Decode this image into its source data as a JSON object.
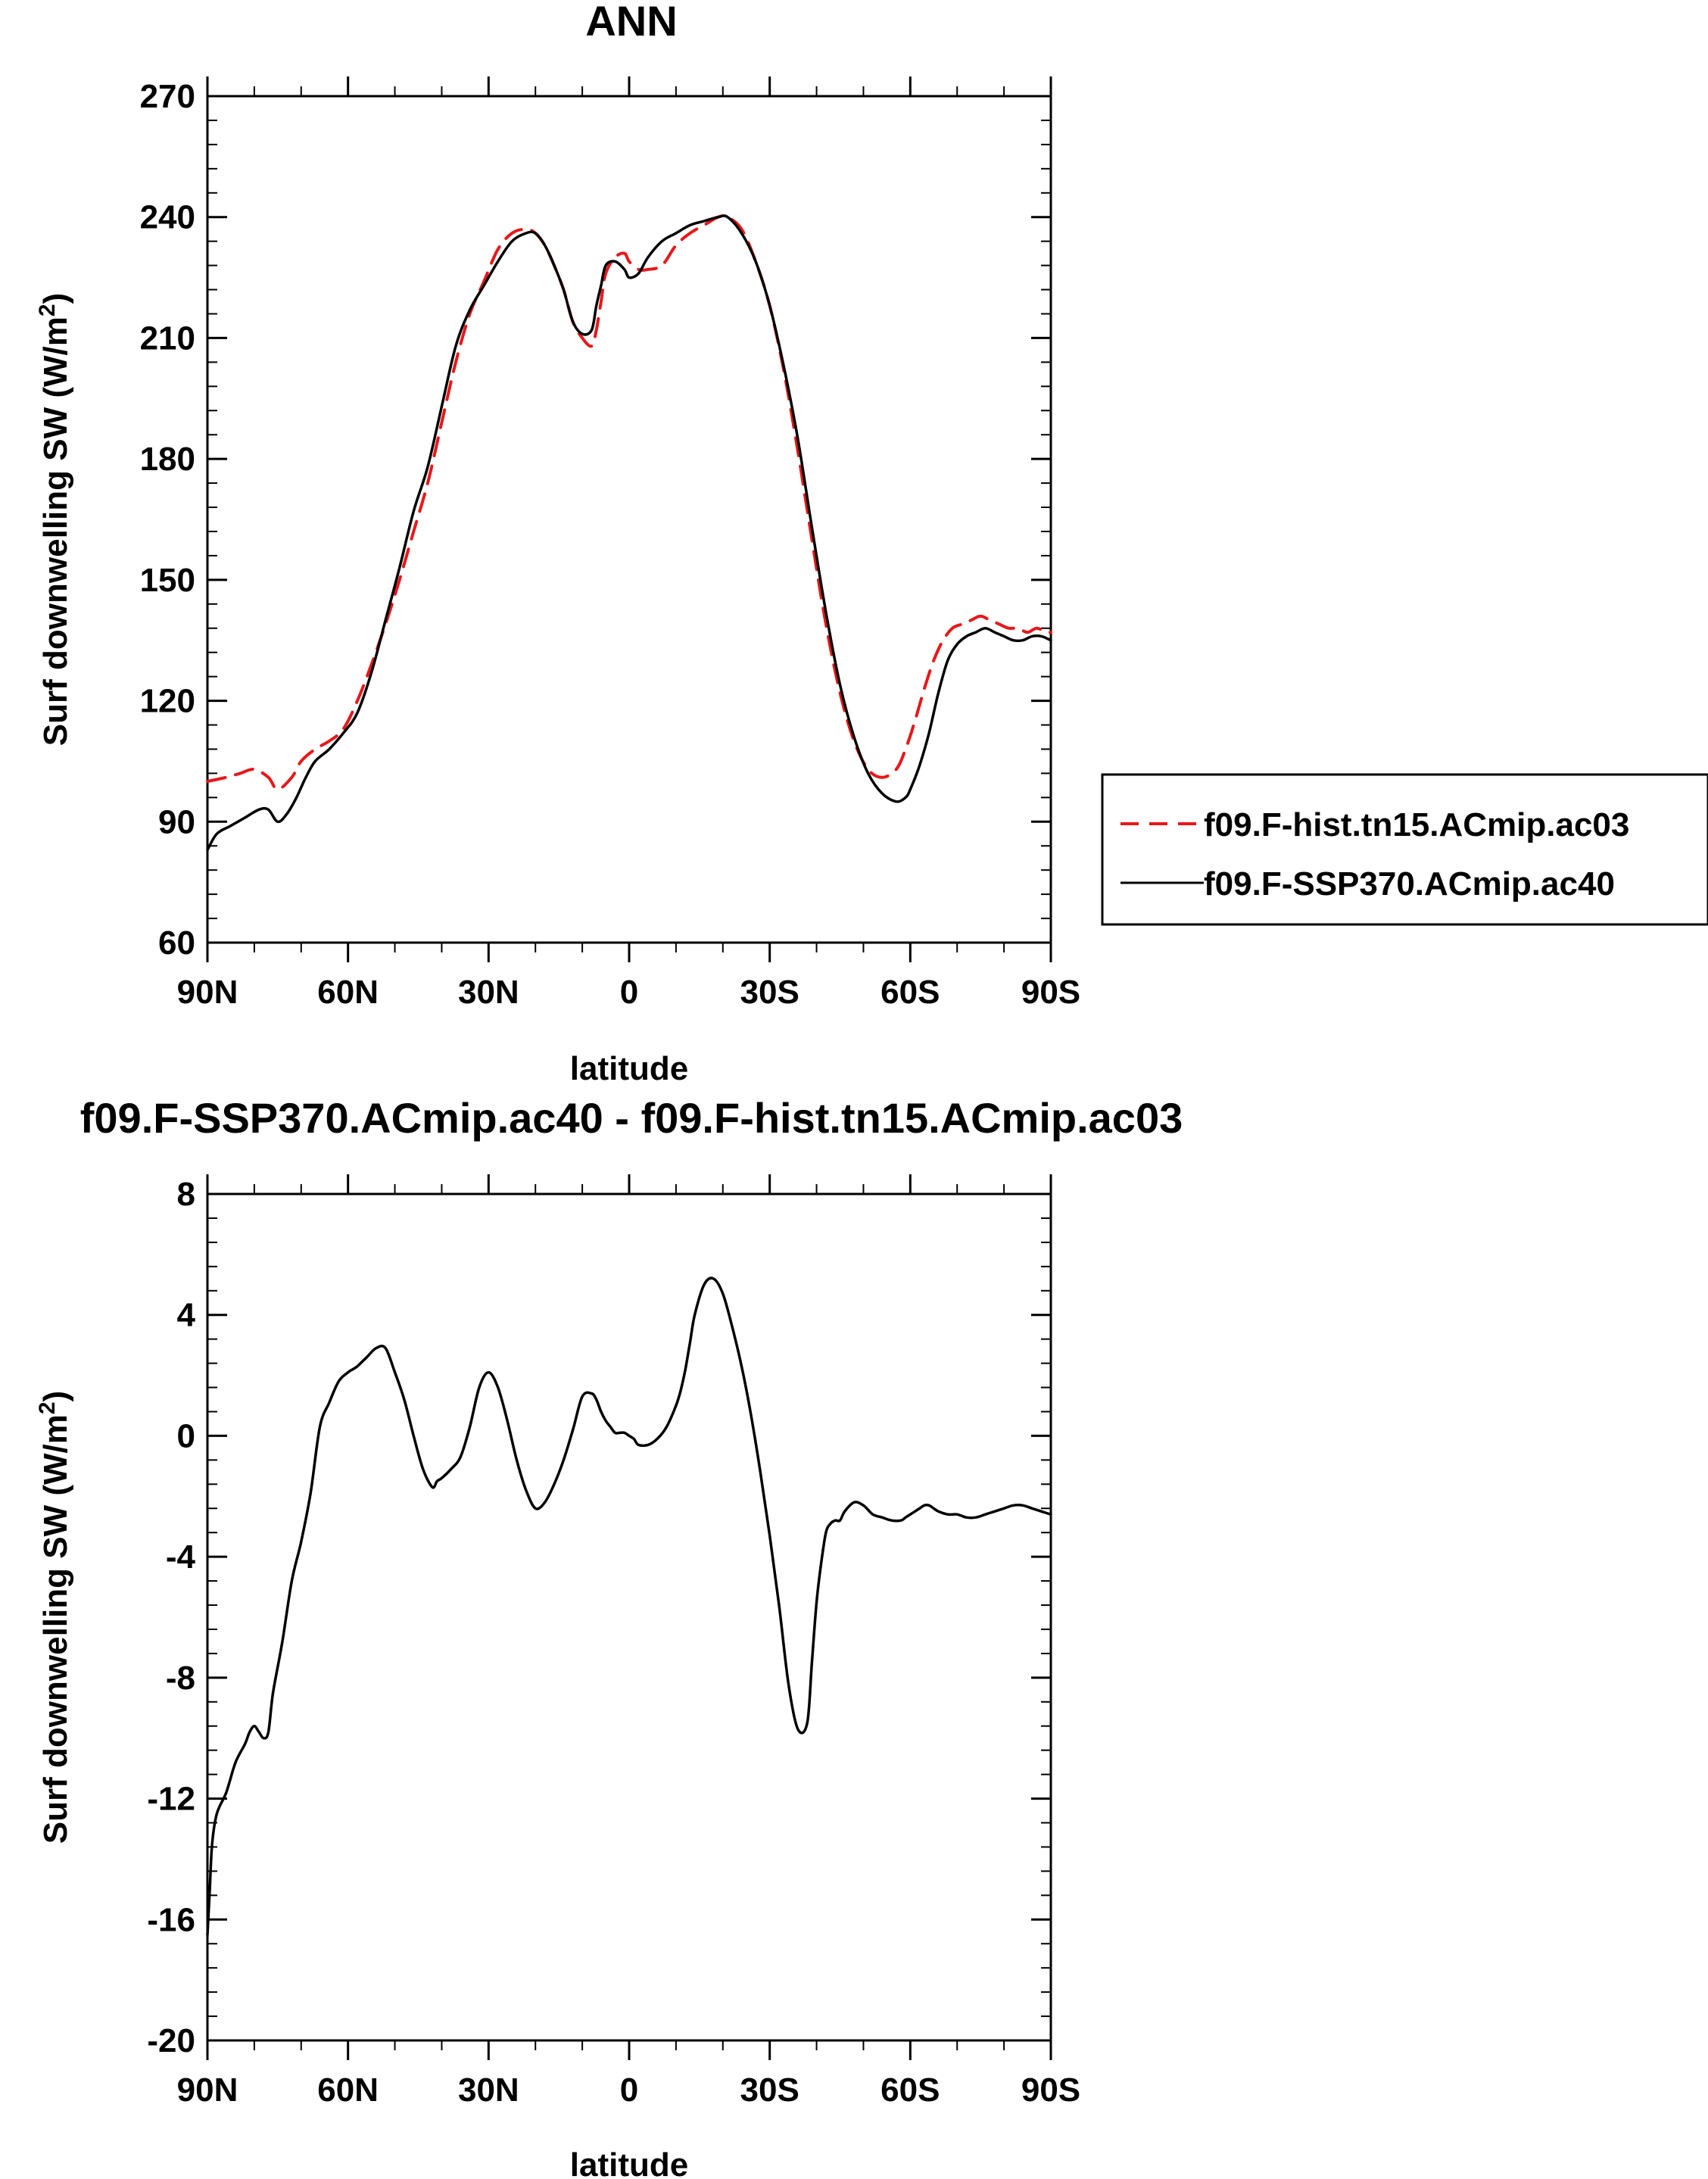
{
  "chart_data": [
    {
      "type": "line",
      "title": "ANN",
      "xlabel": "latitude",
      "ylabel": "Surf downwelling SW (W/m2)",
      "ylabel_main": "Surf downwelling SW (W/m",
      "ylabel_sup": "2",
      "ylabel_close": ")",
      "xlim": [
        90,
        -90
      ],
      "ylim": [
        60,
        270
      ],
      "xticks": [
        90,
        60,
        30,
        0,
        -30,
        -60,
        -90
      ],
      "xtick_labels": [
        "90N",
        "60N",
        "30N",
        "0",
        "30S",
        "60S",
        "90S"
      ],
      "yticks": [
        60,
        90,
        120,
        150,
        180,
        210,
        240,
        270
      ],
      "ytick_labels": [
        "60",
        "90",
        "120",
        "150",
        "180",
        "210",
        "240",
        "270"
      ],
      "legend": [
        "f09.F-hist.tn15.ACmip.ac03",
        "f09.F-SSP370.ACmip.ac40"
      ],
      "legend_position": "right",
      "series": [
        {
          "name": "f09.F-hist.tn15.ACmip.ac03",
          "color": "#e8171a",
          "dash": "dashed",
          "x": [
            90,
            86,
            83,
            80,
            77,
            75,
            72,
            70,
            67,
            64,
            61,
            58,
            55,
            52,
            49,
            46,
            43,
            40,
            37,
            34,
            31,
            28,
            25,
            22,
            20,
            18,
            16,
            14,
            12,
            10,
            8,
            7,
            6,
            5,
            3,
            1,
            0,
            -2,
            -4,
            -7,
            -10,
            -13,
            -16,
            -19,
            -21,
            -24,
            -27,
            -30,
            -33,
            -36,
            -39,
            -42,
            -45,
            -48,
            -51,
            -54,
            -57,
            -59,
            -61,
            -63,
            -65,
            -67,
            -69,
            -71,
            -73,
            -75,
            -77,
            -79,
            -81,
            -83,
            -85,
            -87,
            -89,
            -90
          ],
          "values": [
            100,
            101,
            102,
            103,
            101,
            98,
            101,
            105,
            108,
            110,
            113,
            120,
            129,
            139,
            150,
            162,
            174,
            189,
            204,
            216,
            224,
            232,
            236,
            237,
            236,
            233,
            228,
            222,
            214,
            210,
            208,
            212,
            219,
            226,
            230,
            231,
            229,
            227,
            227,
            228,
            233,
            236,
            238,
            240,
            240,
            237,
            229,
            218,
            202,
            182,
            160,
            139,
            122,
            110,
            103,
            101,
            103,
            108,
            115,
            123,
            130,
            135,
            138,
            139,
            140,
            141,
            140,
            139,
            138,
            138,
            137,
            138,
            137,
            137
          ]
        },
        {
          "name": "f09.F-SSP370.ACmip.ac40",
          "color": "#000000",
          "dash": "solid",
          "x": [
            90,
            88,
            85,
            82,
            79,
            77,
            75,
            73,
            71,
            69,
            67,
            64,
            61,
            58,
            55,
            52,
            49,
            46,
            43,
            40,
            37,
            34,
            31,
            28,
            25,
            22,
            20,
            18,
            16,
            14,
            12,
            10,
            8,
            7,
            6,
            5,
            3,
            1,
            0,
            -2,
            -4,
            -7,
            -10,
            -13,
            -16,
            -19,
            -21,
            -24,
            -27,
            -30,
            -33,
            -36,
            -39,
            -42,
            -45,
            -48,
            -51,
            -54,
            -57,
            -59,
            -60,
            -62,
            -64,
            -66,
            -68,
            -70,
            -72,
            -74,
            -76,
            -78,
            -80,
            -82,
            -84,
            -86,
            -88,
            -90
          ],
          "values": [
            83,
            87,
            89,
            91,
            93,
            93,
            90,
            92,
            96,
            101,
            105,
            108,
            112,
            117,
            127,
            140,
            153,
            167,
            178,
            193,
            208,
            217,
            223,
            229,
            234,
            236,
            236,
            233,
            228,
            222,
            214,
            211,
            212,
            218,
            223,
            228,
            229,
            227,
            225,
            226,
            230,
            234,
            236,
            238,
            239,
            240,
            240,
            236,
            229,
            218,
            203,
            185,
            163,
            142,
            124,
            111,
            102,
            97,
            95,
            96,
            98,
            104,
            112,
            122,
            130,
            134,
            136,
            137,
            138,
            137,
            136,
            135,
            135,
            136,
            136,
            135
          ]
        }
      ]
    },
    {
      "type": "line",
      "title": "f09.F-SSP370.ACmip.ac40 - f09.F-hist.tn15.ACmip.ac03",
      "xlabel": "latitude",
      "ylabel": "Surf downwelling SW (W/m2)",
      "ylabel_main": "Surf downwelling SW (W/m",
      "ylabel_sup": "2",
      "ylabel_close": ")",
      "xlim": [
        90,
        -90
      ],
      "ylim": [
        -20,
        8
      ],
      "xticks": [
        90,
        60,
        30,
        0,
        -30,
        -60,
        -90
      ],
      "xtick_labels": [
        "90N",
        "60N",
        "30N",
        "0",
        "30S",
        "60S",
        "90S"
      ],
      "yticks": [
        -20,
        -16,
        -12,
        -8,
        -4,
        0,
        4,
        8
      ],
      "ytick_labels": [
        "-20",
        "-16",
        "-12",
        "-8",
        "-4",
        "0",
        "4",
        "8"
      ],
      "series": [
        {
          "name": "f09.F-SSP370.ACmip.ac40 - f09.F-hist.tn15.ACmip.ac03",
          "color": "#000000",
          "dash": "solid",
          "x": [
            90,
            89.5,
            89,
            88,
            86,
            84,
            82,
            81,
            80,
            79,
            78,
            77,
            76,
            74,
            72,
            70,
            68,
            66,
            64,
            62,
            60,
            59,
            58,
            56,
            54,
            52,
            50,
            48,
            46,
            44,
            42,
            41,
            40,
            38,
            36,
            34,
            32,
            30,
            28,
            26,
            24,
            22,
            20,
            18,
            16,
            14,
            12,
            10,
            8,
            7,
            6,
            5,
            4,
            3,
            2,
            1,
            0,
            -1,
            -2,
            -4,
            -6,
            -8,
            -10,
            -11,
            -12,
            -13,
            -14,
            -16,
            -18,
            -20,
            -22,
            -24,
            -26,
            -28,
            -30,
            -32,
            -34,
            -36,
            -38,
            -39,
            -40,
            -41,
            -42,
            -43,
            -44,
            -45,
            -46,
            -48,
            -50,
            -52,
            -54,
            -56,
            -58,
            -59,
            -60,
            -61,
            -62,
            -63,
            -64,
            -65,
            -66,
            -68,
            -70,
            -72,
            -74,
            -76,
            -78,
            -80,
            -82,
            -84,
            -86,
            -88,
            -90
          ],
          "values": [
            -16.5,
            -15,
            -13.5,
            -12.5,
            -11.8,
            -10.8,
            -10.2,
            -9.8,
            -9.6,
            -9.8,
            -10,
            -9.8,
            -8.5,
            -6.8,
            -4.8,
            -3.5,
            -1.9,
            0.3,
            1.1,
            1.8,
            2.1,
            2.2,
            2.3,
            2.6,
            2.9,
            2.9,
            2.1,
            1.2,
            0,
            -1.1,
            -1.7,
            -1.5,
            -1.4,
            -1.1,
            -0.7,
            0.3,
            1.6,
            2.1,
            1.6,
            0.5,
            -0.8,
            -1.8,
            -2.4,
            -2.2,
            -1.6,
            -0.8,
            0.2,
            1.3,
            1.4,
            1.2,
            0.8,
            0.5,
            0.3,
            0.1,
            0.1,
            0.1,
            0,
            -0.1,
            -0.3,
            -0.3,
            -0.1,
            0.3,
            1.0,
            1.5,
            2.2,
            3.1,
            4.0,
            5.0,
            5.2,
            4.7,
            3.6,
            2.3,
            0.7,
            -1.2,
            -3.3,
            -5.6,
            -8.2,
            -9.7,
            -9.5,
            -7.5,
            -5.5,
            -4.2,
            -3.2,
            -2.9,
            -2.8,
            -2.8,
            -2.5,
            -2.2,
            -2.3,
            -2.6,
            -2.7,
            -2.8,
            -2.8,
            -2.7,
            -2.6,
            -2.5,
            -2.4,
            -2.3,
            -2.3,
            -2.4,
            -2.5,
            -2.6,
            -2.6,
            -2.7,
            -2.7,
            -2.6,
            -2.5,
            -2.4,
            -2.3,
            -2.3,
            -2.4,
            -2.5,
            -2.6
          ]
        }
      ]
    }
  ]
}
